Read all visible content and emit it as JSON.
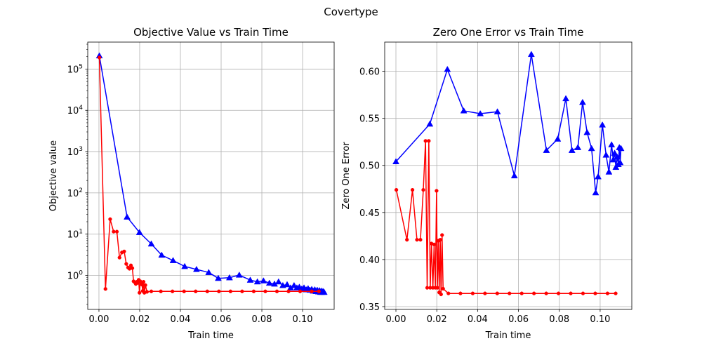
{
  "figure": {
    "suptitle": "Covertype"
  },
  "chart_data": [
    {
      "type": "line",
      "title": "Objective Value vs Train Time",
      "xlabel": "Train time",
      "ylabel": "Objective value",
      "yscale": "log",
      "xlim": [
        -0.0055,
        0.1155
      ],
      "ylim": [
        0.15,
        450000
      ],
      "xticks": [
        0.0,
        0.02,
        0.04,
        0.06,
        0.08,
        0.1
      ],
      "xtick_labels": [
        "0.00",
        "0.02",
        "0.04",
        "0.06",
        "0.08",
        "0.10"
      ],
      "yticks": [
        1,
        10,
        100,
        1000,
        10000,
        100000
      ],
      "ytick_labels": [
        {
          "base": "10",
          "exp": "0"
        },
        {
          "base": "10",
          "exp": "1"
        },
        {
          "base": "10",
          "exp": "2"
        },
        {
          "base": "10",
          "exp": "3"
        },
        {
          "base": "10",
          "exp": "4"
        },
        {
          "base": "10",
          "exp": "5"
        }
      ],
      "grid": true,
      "series": [
        {
          "color": "#0000ff",
          "marker": "triangle",
          "x": [
            0.0002,
            0.0138,
            0.0199,
            0.0257,
            0.0308,
            0.0364,
            0.0421,
            0.0479,
            0.0539,
            0.0586,
            0.0641,
            0.0689,
            0.0743,
            0.0778,
            0.0808,
            0.0837,
            0.0862,
            0.0882,
            0.0903,
            0.0924,
            0.0941,
            0.0958,
            0.0972,
            0.0984,
            0.0996,
            0.1007,
            0.1018,
            0.1027,
            0.1036,
            0.1045,
            0.1052,
            0.106,
            0.1066,
            0.1072,
            0.1078,
            0.1083,
            0.1088,
            0.1092,
            0.1096,
            0.11,
            0.1103,
            0.1106
          ],
          "y": [
            210000,
            26,
            11,
            5.8,
            3.1,
            2.3,
            1.65,
            1.4,
            1.18,
            0.85,
            0.88,
            1.02,
            0.77,
            0.7,
            0.74,
            0.65,
            0.62,
            0.7,
            0.57,
            0.6,
            0.5,
            0.57,
            0.5,
            0.52,
            0.47,
            0.5,
            0.45,
            0.48,
            0.44,
            0.46,
            0.42,
            0.45,
            0.41,
            0.44,
            0.4,
            0.43,
            0.39,
            0.42,
            0.39,
            0.41,
            0.4,
            0.39
          ]
        },
        {
          "color": "#ff0000",
          "marker": "circle",
          "x": [
            0.0002,
            0.0032,
            0.0055,
            0.0072,
            0.0088,
            0.0101,
            0.0113,
            0.0124,
            0.0134,
            0.0143,
            0.015,
            0.0157,
            0.0164,
            0.017,
            0.0176,
            0.0181,
            0.0186,
            0.0191,
            0.0195,
            0.0199,
            0.0203,
            0.0207,
            0.0211,
            0.0215,
            0.0219,
            0.0223,
            0.0228,
            0.0236,
            0.0257,
            0.0304,
            0.0361,
            0.0418,
            0.0475,
            0.0532,
            0.0589,
            0.0646,
            0.0703,
            0.076,
            0.0817,
            0.0874,
            0.0931,
            0.0988,
            0.1045,
            0.108
          ],
          "y": [
            190000,
            0.47,
            23,
            11.5,
            11.5,
            2.7,
            3.6,
            3.8,
            1.9,
            1.55,
            1.45,
            1.75,
            1.5,
            0.72,
            0.68,
            0.62,
            0.7,
            0.66,
            0.78,
            0.38,
            0.72,
            0.68,
            0.6,
            0.42,
            0.7,
            0.38,
            0.58,
            0.4,
            0.41,
            0.41,
            0.41,
            0.41,
            0.41,
            0.41,
            0.41,
            0.41,
            0.41,
            0.41,
            0.41,
            0.41,
            0.41,
            0.41,
            0.41,
            0.41
          ]
        }
      ]
    },
    {
      "type": "line",
      "title": "Zero One Error vs Train Time",
      "xlabel": "Train time",
      "ylabel": "Zero One Error",
      "yscale": "linear",
      "xlim": [
        -0.0055,
        0.1155
      ],
      "ylim": [
        0.347,
        0.631
      ],
      "xticks": [
        0.0,
        0.02,
        0.04,
        0.06,
        0.08,
        0.1
      ],
      "xtick_labels": [
        "0.00",
        "0.02",
        "0.04",
        "0.06",
        "0.08",
        "0.10"
      ],
      "yticks": [
        0.35,
        0.4,
        0.45,
        0.5,
        0.55,
        0.6
      ],
      "ytick_labels": [
        "0.35",
        "0.40",
        "0.45",
        "0.50",
        "0.55",
        "0.60"
      ],
      "grid": true,
      "series": [
        {
          "color": "#0000ff",
          "marker": "triangle",
          "x": [
            0.0,
            0.0166,
            0.0252,
            0.0332,
            0.0413,
            0.0497,
            0.058,
            0.0663,
            0.0737,
            0.0792,
            0.0832,
            0.0862,
            0.0891,
            0.0914,
            0.0936,
            0.0958,
            0.0978,
            0.099,
            0.1011,
            0.1029,
            0.1043,
            0.1056,
            0.1064,
            0.1071,
            0.1077,
            0.1083,
            0.1089,
            0.1094,
            0.1098,
            0.1102
          ],
          "y": [
            0.504,
            0.544,
            0.602,
            0.558,
            0.555,
            0.557,
            0.489,
            0.618,
            0.516,
            0.528,
            0.571,
            0.516,
            0.519,
            0.567,
            0.535,
            0.518,
            0.471,
            0.488,
            0.543,
            0.511,
            0.493,
            0.522,
            0.506,
            0.513,
            0.498,
            0.509,
            0.501,
            0.519,
            0.503,
            0.518
          ]
        },
        {
          "color": "#ff0000",
          "marker": "circle",
          "x": [
            0.0002,
            0.0054,
            0.0081,
            0.0103,
            0.012,
            0.0134,
            0.0145,
            0.0153,
            0.0161,
            0.0168,
            0.0174,
            0.0181,
            0.0187,
            0.0193,
            0.0199,
            0.0203,
            0.0208,
            0.0212,
            0.0217,
            0.0221,
            0.0226,
            0.0231,
            0.0257,
            0.0316,
            0.0376,
            0.0436,
            0.0496,
            0.0556,
            0.0616,
            0.0676,
            0.0736,
            0.0796,
            0.0856,
            0.0916,
            0.0976,
            0.1036,
            0.1076
          ],
          "y": [
            0.474,
            0.421,
            0.474,
            0.421,
            0.421,
            0.474,
            0.526,
            0.37,
            0.526,
            0.37,
            0.417,
            0.37,
            0.416,
            0.37,
            0.473,
            0.37,
            0.42,
            0.365,
            0.421,
            0.363,
            0.426,
            0.369,
            0.364,
            0.364,
            0.364,
            0.364,
            0.364,
            0.364,
            0.364,
            0.364,
            0.364,
            0.364,
            0.364,
            0.364,
            0.364,
            0.364,
            0.364
          ]
        }
      ]
    }
  ]
}
